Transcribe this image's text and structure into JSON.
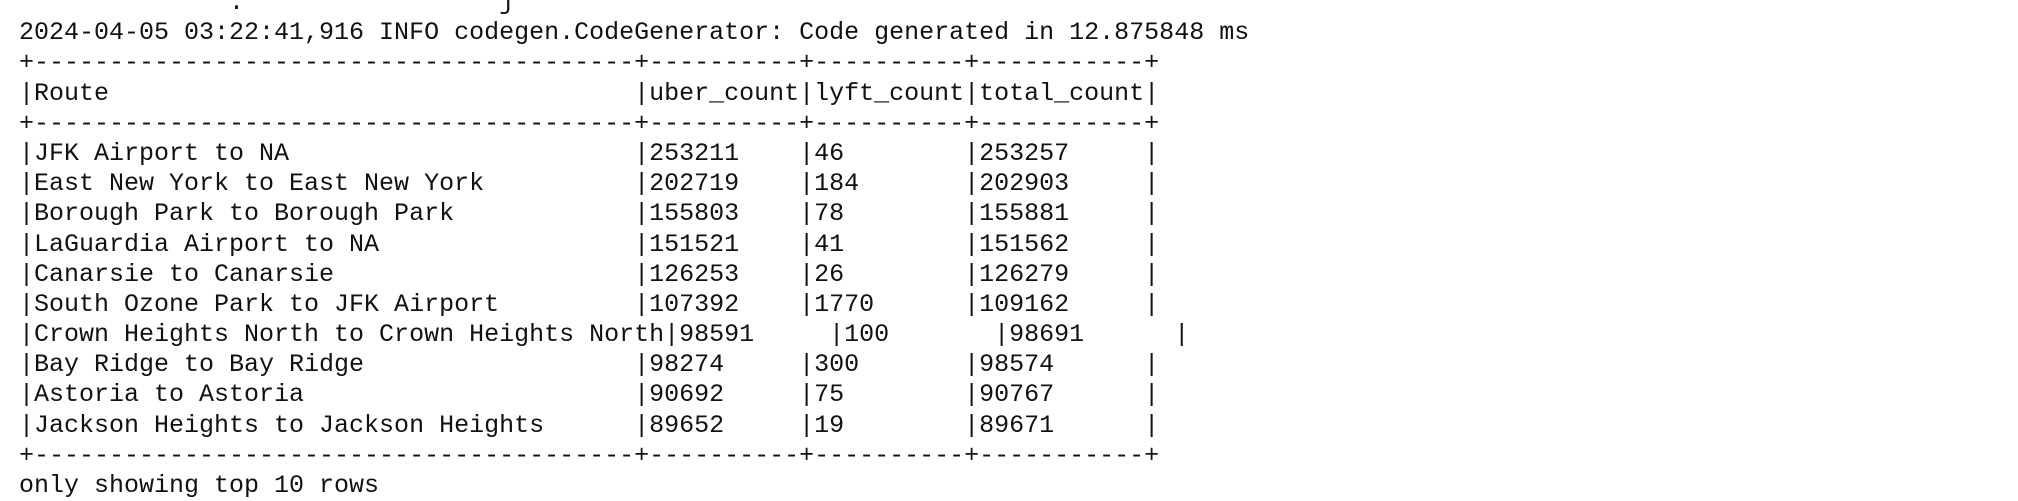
{
  "console": {
    "lines": [
      {
        "name": "log-line-partial",
        "text": "              .                 j          "
      },
      {
        "name": "log-line-codegen",
        "text": "2024-04-05 03:22:41,916 INFO codegen.CodeGenerator: Code generated in 12.875848 ms"
      },
      {
        "name": "table-border-top",
        "text": "+----------------------------------------+----------+----------+-----------+"
      },
      {
        "name": "table-header-row",
        "text": "|Route                                   |uber_count|lyft_count|total_count|"
      },
      {
        "name": "table-border-header",
        "text": "+----------------------------------------+----------+----------+-----------+"
      },
      {
        "name": "table-row",
        "text": "|JFK Airport to NA                       |253211    |46        |253257     |"
      },
      {
        "name": "table-row",
        "text": "|East New York to East New York          |202719    |184       |202903     |"
      },
      {
        "name": "table-row",
        "text": "|Borough Park to Borough Park            |155803    |78        |155881     |"
      },
      {
        "name": "table-row",
        "text": "|LaGuardia Airport to NA                 |151521    |41        |151562     |"
      },
      {
        "name": "table-row",
        "text": "|Canarsie to Canarsie                    |126253    |26        |126279     |"
      },
      {
        "name": "table-row",
        "text": "|South Ozone Park to JFK Airport         |107392    |1770      |109162     |"
      },
      {
        "name": "table-row",
        "text": "|Crown Heights North to Crown Heights North|98591     |100       |98691      |"
      },
      {
        "name": "table-row",
        "text": "|Bay Ridge to Bay Ridge                  |98274     |300       |98574      |"
      },
      {
        "name": "table-row",
        "text": "|Astoria to Astoria                      |90692     |75        |90767      |"
      },
      {
        "name": "table-row",
        "text": "|Jackson Heights to Jackson Heights      |89652     |19        |89671      |"
      },
      {
        "name": "table-border-bottom",
        "text": "+----------------------------------------+----------+----------+-----------+"
      },
      {
        "name": "footer-note",
        "text": "only showing top 10 rows"
      }
    ]
  }
}
